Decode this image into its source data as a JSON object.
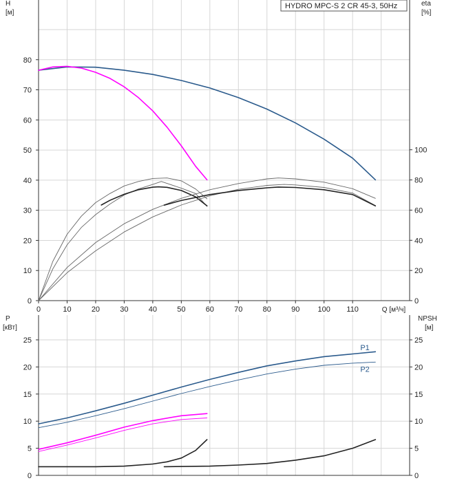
{
  "chart_data": [
    {
      "type": "line",
      "legend_box": "HYDRO MPC-S 2 CR 45-3, 50Hz",
      "xlabel": "Q [м³/ч]",
      "ylabel_left": [
        "H",
        "[м]"
      ],
      "ylabel_right": [
        "eta",
        "[%]"
      ],
      "xlim": [
        0,
        130
      ],
      "ylim_left": [
        0,
        90
      ],
      "ylim_right": [
        0,
        100
      ],
      "x_ticks": [
        "0",
        "10",
        "20",
        "30",
        "40",
        "50",
        "60",
        "70",
        "80",
        "90",
        "100",
        "110"
      ],
      "y_left_ticks": [
        "0",
        "10",
        "20",
        "30",
        "40",
        "50",
        "60",
        "70",
        "80"
      ],
      "y_right_ticks": [
        "0",
        "20",
        "40",
        "60",
        "80",
        "100"
      ],
      "grid": true,
      "series": [
        {
          "axis": "left",
          "color": "#2a5a8c",
          "width": 1.6,
          "points": [
            [
              0,
              76.5
            ],
            [
              10,
              77.6
            ],
            [
              20,
              77.5
            ],
            [
              30,
              76.5
            ],
            [
              40,
              75.1
            ],
            [
              50,
              73.1
            ],
            [
              60,
              70.6
            ],
            [
              70,
              67.4
            ],
            [
              80,
              63.6
            ],
            [
              90,
              59
            ],
            [
              100,
              53.6
            ],
            [
              110,
              47.3
            ],
            [
              118,
              40.1
            ]
          ]
        },
        {
          "axis": "left",
          "color": "#ff00ff",
          "width": 1.6,
          "points": [
            [
              0,
              76.5
            ],
            [
              5,
              77.6
            ],
            [
              10,
              77.8
            ],
            [
              15,
              77.2
            ],
            [
              20,
              75.8
            ],
            [
              25,
              73.8
            ],
            [
              30,
              71
            ],
            [
              35,
              67.4
            ],
            [
              40,
              63
            ],
            [
              45,
              57.6
            ],
            [
              50,
              51.4
            ],
            [
              55,
              44.6
            ],
            [
              59,
              40.1
            ]
          ]
        },
        {
          "axis": "right",
          "color": "#666666",
          "width": 0.9,
          "points": [
            [
              0,
              0
            ],
            [
              5,
              26
            ],
            [
              10,
              44
            ],
            [
              15,
              56
            ],
            [
              20,
              65
            ],
            [
              25,
              71
            ],
            [
              30,
              76
            ],
            [
              35,
              79
            ],
            [
              40,
              81
            ],
            [
              45,
              81.3
            ],
            [
              50,
              79.4
            ],
            [
              55,
              74
            ],
            [
              59,
              67.5
            ]
          ]
        },
        {
          "axis": "right",
          "color": "#666666",
          "width": 0.9,
          "points": [
            [
              0,
              0
            ],
            [
              5,
              21
            ],
            [
              10,
              37
            ],
            [
              15,
              48.5
            ],
            [
              20,
              57
            ],
            [
              25,
              64
            ],
            [
              30,
              70
            ],
            [
              35,
              74
            ],
            [
              40,
              77
            ],
            [
              43,
              79
            ],
            [
              50,
              74.5
            ],
            [
              55,
              71
            ],
            [
              59,
              62.5
            ]
          ]
        },
        {
          "axis": "right",
          "color": "#222222",
          "width": 1.6,
          "points": [
            [
              22,
              63.4
            ],
            [
              25,
              66.5
            ],
            [
              30,
              70.5
            ],
            [
              35,
              73.5
            ],
            [
              40,
              75.2
            ],
            [
              42,
              75.4
            ],
            [
              45,
              75.1
            ],
            [
              50,
              73
            ],
            [
              55,
              68.8
            ],
            [
              59,
              62.8
            ]
          ]
        },
        {
          "axis": "right",
          "color": "#666666",
          "width": 0.9,
          "points": [
            [
              0,
              0
            ],
            [
              10,
              22
            ],
            [
              20,
              38.5
            ],
            [
              30,
              51
            ],
            [
              40,
              60.5
            ],
            [
              50,
              67.8
            ],
            [
              60,
              73.5
            ],
            [
              70,
              77.6
            ],
            [
              80,
              80.7
            ],
            [
              84,
              81.3
            ],
            [
              90,
              80.7
            ],
            [
              100,
              78.5
            ],
            [
              110,
              74.2
            ],
            [
              118,
              67.8
            ]
          ]
        },
        {
          "axis": "right",
          "color": "#666666",
          "width": 0.9,
          "points": [
            [
              0,
              0
            ],
            [
              10,
              18.5
            ],
            [
              20,
              33
            ],
            [
              30,
              45.5
            ],
            [
              40,
              55.5
            ],
            [
              50,
              63.4
            ],
            [
              60,
              69.5
            ],
            [
              70,
              73.8
            ],
            [
              80,
              76.4
            ],
            [
              86,
              77
            ],
            [
              90,
              76.7
            ],
            [
              100,
              75
            ],
            [
              110,
              71.3
            ],
            [
              118,
              63
            ]
          ]
        },
        {
          "axis": "right",
          "color": "#222222",
          "width": 1.6,
          "points": [
            [
              44,
              63.3
            ],
            [
              50,
              66.4
            ],
            [
              60,
              70.3
            ],
            [
              70,
              73
            ],
            [
              80,
              74.8
            ],
            [
              84,
              75.3
            ],
            [
              90,
              75
            ],
            [
              100,
              73.5
            ],
            [
              110,
              70.3
            ],
            [
              118,
              62.8
            ]
          ]
        }
      ]
    },
    {
      "type": "line",
      "ylabel_left": [
        "P",
        "[кВт]"
      ],
      "ylabel_right": [
        "NPSH",
        "[м]"
      ],
      "xlim": [
        0,
        130
      ],
      "ylim_left": [
        0,
        28
      ],
      "ylim_right": [
        0,
        28
      ],
      "y_left_ticks": [
        "0",
        "5",
        "10",
        "15",
        "20",
        "25"
      ],
      "y_right_ticks": [
        "0",
        "5",
        "10",
        "15",
        "20",
        "25"
      ],
      "grid": true,
      "series": [
        {
          "axis": "left",
          "name": "P1",
          "color": "#2a5a8c",
          "width": 1.6,
          "points": [
            [
              0,
              9.5
            ],
            [
              10,
              10.6
            ],
            [
              20,
              11.9
            ],
            [
              30,
              13.3
            ],
            [
              40,
              14.8
            ],
            [
              50,
              16.3
            ],
            [
              60,
              17.7
            ],
            [
              70,
              19
            ],
            [
              80,
              20.2
            ],
            [
              90,
              21.1
            ],
            [
              100,
              21.9
            ],
            [
              110,
              22.4
            ],
            [
              118,
              22.8
            ]
          ]
        },
        {
          "axis": "left",
          "name": "P2",
          "color": "#2a5a8c",
          "width": 0.9,
          "points": [
            [
              0,
              8.8
            ],
            [
              10,
              9.8
            ],
            [
              20,
              11
            ],
            [
              30,
              12.3
            ],
            [
              40,
              13.7
            ],
            [
              50,
              15.1
            ],
            [
              60,
              16.4
            ],
            [
              70,
              17.6
            ],
            [
              80,
              18.7
            ],
            [
              90,
              19.6
            ],
            [
              100,
              20.3
            ],
            [
              110,
              20.7
            ],
            [
              118,
              20.9
            ]
          ]
        },
        {
          "axis": "left",
          "color": "#ff00ff",
          "width": 1.6,
          "points": [
            [
              0,
              4.8
            ],
            [
              10,
              6
            ],
            [
              20,
              7.4
            ],
            [
              30,
              8.9
            ],
            [
              40,
              10.1
            ],
            [
              50,
              11
            ],
            [
              59,
              11.4
            ]
          ]
        },
        {
          "axis": "left",
          "color": "#ff00ff",
          "width": 0.9,
          "points": [
            [
              0,
              4.4
            ],
            [
              10,
              5.6
            ],
            [
              20,
              6.9
            ],
            [
              30,
              8.3
            ],
            [
              40,
              9.5
            ],
            [
              50,
              10.3
            ],
            [
              59,
              10.6
            ]
          ]
        },
        {
          "axis": "right",
          "color": "#222222",
          "width": 1.6,
          "points": [
            [
              0,
              1.6
            ],
            [
              10,
              1.6
            ],
            [
              20,
              1.6
            ],
            [
              30,
              1.7
            ],
            [
              40,
              2.1
            ],
            [
              45,
              2.5
            ],
            [
              50,
              3.2
            ],
            [
              55,
              4.6
            ],
            [
              59,
              6.6
            ]
          ]
        },
        {
          "axis": "right",
          "color": "#222222",
          "width": 1.6,
          "points": [
            [
              44,
              1.6
            ],
            [
              60,
              1.7
            ],
            [
              70,
              1.9
            ],
            [
              80,
              2.2
            ],
            [
              90,
              2.8
            ],
            [
              100,
              3.6
            ],
            [
              110,
              5
            ],
            [
              118,
              6.6
            ]
          ]
        }
      ],
      "labels": [
        {
          "text": "P1",
          "x": 118,
          "y": 23.6,
          "color": "#2a5a8c"
        },
        {
          "text": "P2",
          "x": 118,
          "y": 19.6,
          "color": "#2a5a8c"
        }
      ]
    }
  ]
}
